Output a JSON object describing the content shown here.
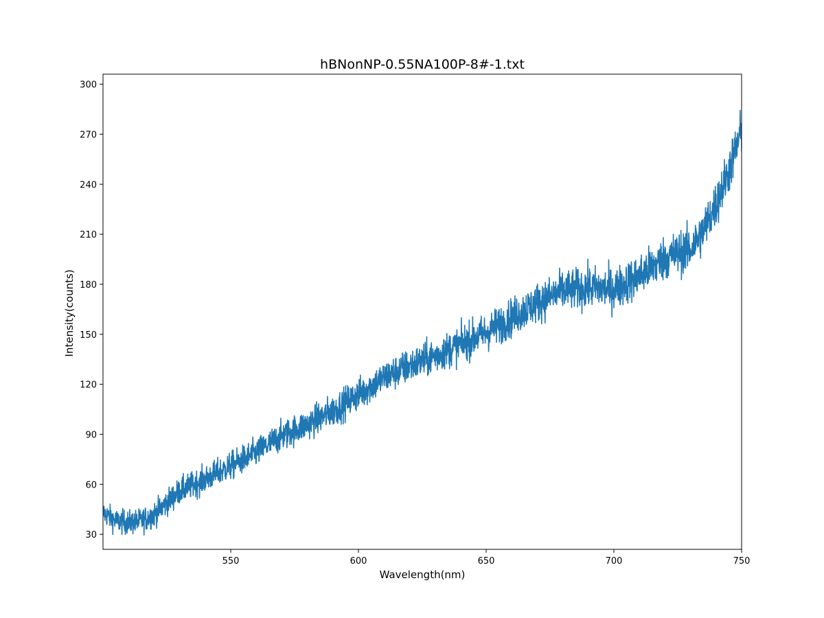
{
  "chart_data": {
    "type": "line",
    "title": "hBNonNP-0.55NA100P-8#-1.txt",
    "xlabel": "Wavelength(nm)",
    "ylabel": "Intensity(counts)",
    "xlim": [
      500,
      750
    ],
    "ylim": [
      21,
      306
    ],
    "xticks": [
      "550",
      "600",
      "650",
      "700",
      "750"
    ],
    "yticks": [
      "30",
      "60",
      "90",
      "120",
      "150",
      "180",
      "210",
      "240",
      "270",
      "300"
    ],
    "grid": false,
    "legend": "none",
    "series": [
      {
        "color": "#1f77b4",
        "trend_x": [
          500,
          505,
          510,
          515,
          520,
          530,
          540,
          550,
          560,
          570,
          580,
          590,
          600,
          610,
          620,
          630,
          640,
          650,
          660,
          670,
          680,
          690,
          700,
          710,
          720,
          730,
          735,
          740,
          745,
          750
        ],
        "trend_y": [
          43,
          38,
          37,
          38,
          42,
          56,
          63,
          71,
          79,
          89,
          96,
          104,
          114,
          124,
          131,
          137,
          144,
          151,
          160,
          169,
          176,
          178,
          177,
          185,
          196,
          201,
          212,
          228,
          248,
          272
        ],
        "noise_amplitude": 11
      }
    ]
  }
}
